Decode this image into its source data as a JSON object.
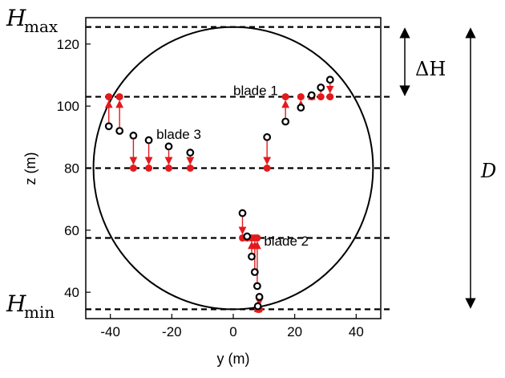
{
  "axes": {
    "xlabel": "y (m)",
    "ylabel": "z (m)",
    "xlim": [
      -48,
      48
    ],
    "ylim": [
      31.5,
      128.5
    ],
    "xticks": [
      -40,
      -20,
      0,
      20,
      40
    ],
    "yticks": [
      40,
      60,
      80,
      100,
      120
    ]
  },
  "rotor_circle": {
    "center_y": 0,
    "center_z": 80,
    "radius": 45.5
  },
  "levels": [
    {
      "name": "H_max",
      "z": 125.5
    },
    {
      "name": "top-measurement",
      "z": 103
    },
    {
      "name": "hub",
      "z": 80
    },
    {
      "name": "lower-measurement",
      "z": 57.5
    },
    {
      "name": "H_min",
      "z": 34.5
    }
  ],
  "labels": {
    "hmax_main": "H",
    "hmax_sub": "max",
    "hmin_main": "H",
    "hmin_sub": "min",
    "delta_h": "ΔH",
    "d": "D",
    "blade1": "blade 1",
    "blade2": "blade 2",
    "blade3": "blade 3"
  },
  "blade_label_anchors": {
    "blade1": {
      "y": 0,
      "z": 103.5
    },
    "blade2": {
      "y": 10,
      "z": 55
    },
    "blade3": {
      "y": -25,
      "z": 89.5
    }
  },
  "dimensions": {
    "delta_h": {
      "from_z": 125.5,
      "to_z": 103
    },
    "d": {
      "from_z": 125.5,
      "to_z": 34.5
    }
  },
  "colors": {
    "measured": "#000000",
    "projected": "#e31a1c",
    "arrow": "#e31a1c",
    "guide": "#000000"
  },
  "series": [
    {
      "name": "blade 1",
      "measured": [
        {
          "y": 17,
          "z": 95
        },
        {
          "y": 22,
          "z": 99.5
        },
        {
          "y": 25.5,
          "z": 103.5
        },
        {
          "y": 28.5,
          "z": 106
        },
        {
          "y": 31.5,
          "z": 108.5
        },
        {
          "y": 11,
          "z": 90
        }
      ],
      "projected": [
        {
          "y": 17,
          "z": 103
        },
        {
          "y": 22,
          "z": 103
        },
        {
          "y": 25.5,
          "z": 103
        },
        {
          "y": 28.5,
          "z": 103
        },
        {
          "y": 31.5,
          "z": 103
        },
        {
          "y": 11,
          "z": 80
        }
      ]
    },
    {
      "name": "blade 2",
      "measured": [
        {
          "y": 3,
          "z": 65.5
        },
        {
          "y": 4.5,
          "z": 58
        },
        {
          "y": 6,
          "z": 51.5
        },
        {
          "y": 7,
          "z": 46.5
        },
        {
          "y": 7.8,
          "z": 42
        },
        {
          "y": 8.5,
          "z": 38.5
        },
        {
          "y": 8,
          "z": 35.5
        }
      ],
      "projected": [
        {
          "y": 3,
          "z": 57.5
        },
        {
          "y": 4.5,
          "z": 57.5
        },
        {
          "y": 6,
          "z": 57.5
        },
        {
          "y": 7,
          "z": 57.5
        },
        {
          "y": 7.8,
          "z": 57.5
        },
        {
          "y": 8.5,
          "z": 34.5
        },
        {
          "y": 8,
          "z": 34.5
        }
      ]
    },
    {
      "name": "blade 3",
      "measured": [
        {
          "y": -14,
          "z": 85
        },
        {
          "y": -21,
          "z": 87
        },
        {
          "y": -27.5,
          "z": 89
        },
        {
          "y": -32.5,
          "z": 90.5
        },
        {
          "y": -37,
          "z": 92
        },
        {
          "y": -40.5,
          "z": 93.5
        }
      ],
      "projected": [
        {
          "y": -14,
          "z": 80
        },
        {
          "y": -21,
          "z": 80
        },
        {
          "y": -27.5,
          "z": 80
        },
        {
          "y": -32.5,
          "z": 80
        },
        {
          "y": -37,
          "z": 103
        },
        {
          "y": -40.5,
          "z": 103
        }
      ]
    }
  ]
}
